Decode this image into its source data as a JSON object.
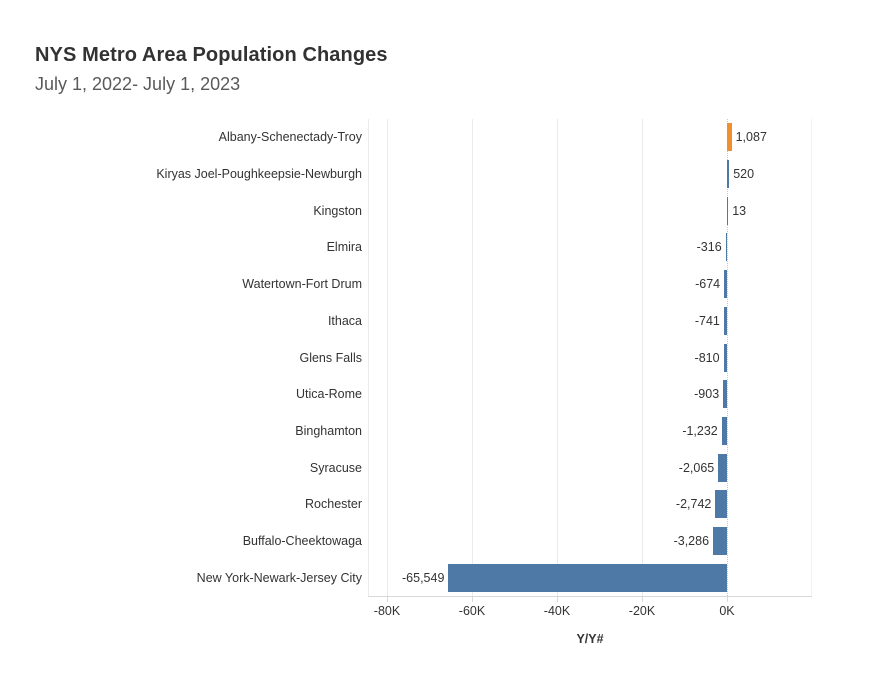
{
  "page": {
    "title": "NYS Metro Area Population Changes",
    "subtitle": "July 1, 2022- July 1, 2023"
  },
  "chart_data": {
    "type": "bar",
    "orientation": "horizontal",
    "title": "NYS Metro Area Population Changes",
    "subtitle": "July 1, 2022- July 1, 2023",
    "xlabel": "Y/Y#",
    "ylabel": "",
    "xlim": [
      -84500,
      20000
    ],
    "grid": true,
    "legend": false,
    "colors": {
      "bar_default": "#4e79a7",
      "bar_highlight": "#f28e2b",
      "gridline": "#ebebeb",
      "axis_line": "#d9d9d9",
      "text": "#333333"
    },
    "x_ticks": [
      {
        "value": -80000,
        "label": "-80K"
      },
      {
        "value": -60000,
        "label": "-60K"
      },
      {
        "value": -40000,
        "label": "-40K"
      },
      {
        "value": -20000,
        "label": "-20K"
      },
      {
        "value": 0,
        "label": "0K"
      }
    ],
    "bars": [
      {
        "category": "Albany-Schenectady-Troy",
        "value": 1087,
        "label": "1,087",
        "highlight": true
      },
      {
        "category": "Kiryas Joel-Poughkeepsie-Newburgh",
        "value": 520,
        "label": "520",
        "highlight": false
      },
      {
        "category": "Kingston",
        "value": 13,
        "label": "13",
        "highlight": false
      },
      {
        "category": "Elmira",
        "value": -316,
        "label": "-316",
        "highlight": false
      },
      {
        "category": "Watertown-Fort Drum",
        "value": -674,
        "label": "-674",
        "highlight": false
      },
      {
        "category": "Ithaca",
        "value": -741,
        "label": "-741",
        "highlight": false
      },
      {
        "category": "Glens Falls",
        "value": -810,
        "label": "-810",
        "highlight": false
      },
      {
        "category": "Utica-Rome",
        "value": -903,
        "label": "-903",
        "highlight": false
      },
      {
        "category": "Binghamton",
        "value": -1232,
        "label": "-1,232",
        "highlight": false
      },
      {
        "category": "Syracuse",
        "value": -2065,
        "label": "-2,065",
        "highlight": false
      },
      {
        "category": "Rochester",
        "value": -2742,
        "label": "-2,742",
        "highlight": false
      },
      {
        "category": "Buffalo-Cheektowaga",
        "value": -3286,
        "label": "-3,286",
        "highlight": false
      },
      {
        "category": "New York-Newark-Jersey City",
        "value": -65549,
        "label": "-65,549",
        "highlight": false
      }
    ]
  }
}
